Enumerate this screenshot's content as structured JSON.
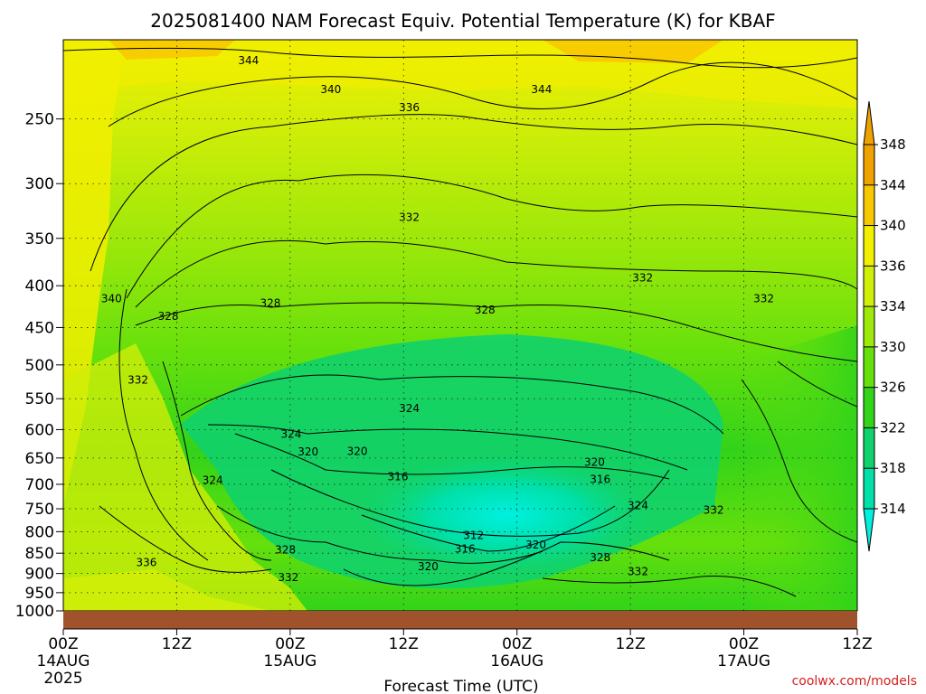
{
  "title": "2025081400 NAM Forecast Equiv. Potential Temperature (K) for KBAF",
  "credit": "coolwx.com/models",
  "chart_data": {
    "type": "heatmap",
    "title": "2025081400 NAM Forecast Equiv. Potential Temperature (K) for KBAF",
    "xlabel": "Forecast Time (UTC)",
    "ylabel": "",
    "x_unit": "forecast hours from 2025-08-14 00Z",
    "xlim": [
      0,
      84
    ],
    "ylim": [
      1000,
      200
    ],
    "y_scale": "log (pressure, hPa)",
    "grid": true,
    "x_ticks": [
      {
        "h": 0,
        "l1": "00Z",
        "l2": "14AUG",
        "l3": "2025"
      },
      {
        "h": 12,
        "l1": "12Z",
        "l2": "",
        "l3": ""
      },
      {
        "h": 24,
        "l1": "00Z",
        "l2": "15AUG",
        "l3": ""
      },
      {
        "h": 36,
        "l1": "12Z",
        "l2": "",
        "l3": ""
      },
      {
        "h": 48,
        "l1": "00Z",
        "l2": "16AUG",
        "l3": ""
      },
      {
        "h": 60,
        "l1": "12Z",
        "l2": "",
        "l3": ""
      },
      {
        "h": 72,
        "l1": "00Z",
        "l2": "17AUG",
        "l3": ""
      },
      {
        "h": 84,
        "l1": "12Z",
        "l2": "",
        "l3": ""
      }
    ],
    "y_ticks": [
      250,
      300,
      350,
      400,
      450,
      500,
      550,
      600,
      650,
      700,
      750,
      800,
      850,
      900,
      950,
      1000
    ],
    "colorbar": {
      "levels": [
        314,
        318,
        322,
        326,
        330,
        334,
        336,
        340,
        344,
        348
      ],
      "colors": [
        "#00f0e0",
        "#00e0a8",
        "#10d26c",
        "#32d31a",
        "#66e00c",
        "#9ee80a",
        "#d0ee08",
        "#f2ef00",
        "#f7c800",
        "#efa100"
      ]
    },
    "contour_labels": [
      {
        "v": "344",
        "h": 19.6,
        "p": 212
      },
      {
        "v": "344",
        "h": 50.6,
        "p": 230
      },
      {
        "v": "340",
        "h": 28.3,
        "p": 230
      },
      {
        "v": "336",
        "h": 36.6,
        "p": 242
      },
      {
        "v": "332",
        "h": 36.6,
        "p": 330
      },
      {
        "v": "332",
        "h": 61.3,
        "p": 391
      },
      {
        "v": "332",
        "h": 74.1,
        "p": 415
      },
      {
        "v": "340",
        "h": 5.1,
        "p": 415
      },
      {
        "v": "328",
        "h": 21.9,
        "p": 420
      },
      {
        "v": "328",
        "h": 11.1,
        "p": 436
      },
      {
        "v": "328",
        "h": 44.6,
        "p": 428
      },
      {
        "v": "332",
        "h": 7.9,
        "p": 522
      },
      {
        "v": "324",
        "h": 36.6,
        "p": 565
      },
      {
        "v": "324",
        "h": 24.1,
        "p": 608
      },
      {
        "v": "320",
        "h": 25.9,
        "p": 639
      },
      {
        "v": "320",
        "h": 31.1,
        "p": 638
      },
      {
        "v": "320",
        "h": 56.2,
        "p": 658
      },
      {
        "v": "324",
        "h": 15.8,
        "p": 692
      },
      {
        "v": "316",
        "h": 35.4,
        "p": 685
      },
      {
        "v": "316",
        "h": 56.8,
        "p": 690
      },
      {
        "v": "324",
        "h": 60.8,
        "p": 743
      },
      {
        "v": "332",
        "h": 68.8,
        "p": 753
      },
      {
        "v": "312",
        "h": 43.4,
        "p": 808
      },
      {
        "v": "316",
        "h": 42.5,
        "p": 840
      },
      {
        "v": "320",
        "h": 50.0,
        "p": 830
      },
      {
        "v": "328",
        "h": 23.5,
        "p": 842
      },
      {
        "v": "328",
        "h": 56.8,
        "p": 860
      },
      {
        "v": "336",
        "h": 8.8,
        "p": 873
      },
      {
        "v": "320",
        "h": 38.6,
        "p": 883
      },
      {
        "v": "332",
        "h": 23.8,
        "p": 910
      },
      {
        "v": "332",
        "h": 60.8,
        "p": 895
      }
    ]
  }
}
